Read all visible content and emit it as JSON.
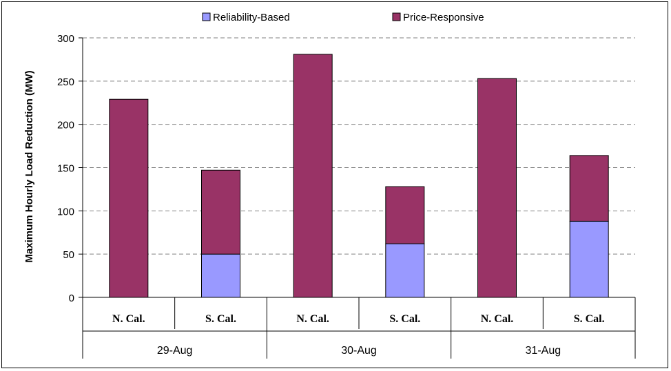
{
  "chart_data": {
    "type": "bar",
    "stacked": true,
    "groups": [
      {
        "label": "29-Aug",
        "categories": [
          "N. Cal.",
          "S. Cal."
        ]
      },
      {
        "label": "30-Aug",
        "categories": [
          "N. Cal.",
          "S. Cal."
        ]
      },
      {
        "label": "31-Aug",
        "categories": [
          "N. Cal.",
          "S. Cal."
        ]
      }
    ],
    "series": [
      {
        "name": "Reliability-Based",
        "color": "#9999ff",
        "values": [
          0,
          50,
          0,
          62,
          0,
          88
        ]
      },
      {
        "name": "Price-Responsive",
        "color": "#993366",
        "values": [
          229,
          97,
          281,
          66,
          253,
          76
        ]
      }
    ],
    "ylabel": "Maximum Hourly Load Reduction (MW)",
    "ylim": [
      0,
      300
    ],
    "yticks": [
      0,
      50,
      100,
      150,
      200,
      250,
      300
    ],
    "grid": true,
    "legend_position": "top"
  }
}
